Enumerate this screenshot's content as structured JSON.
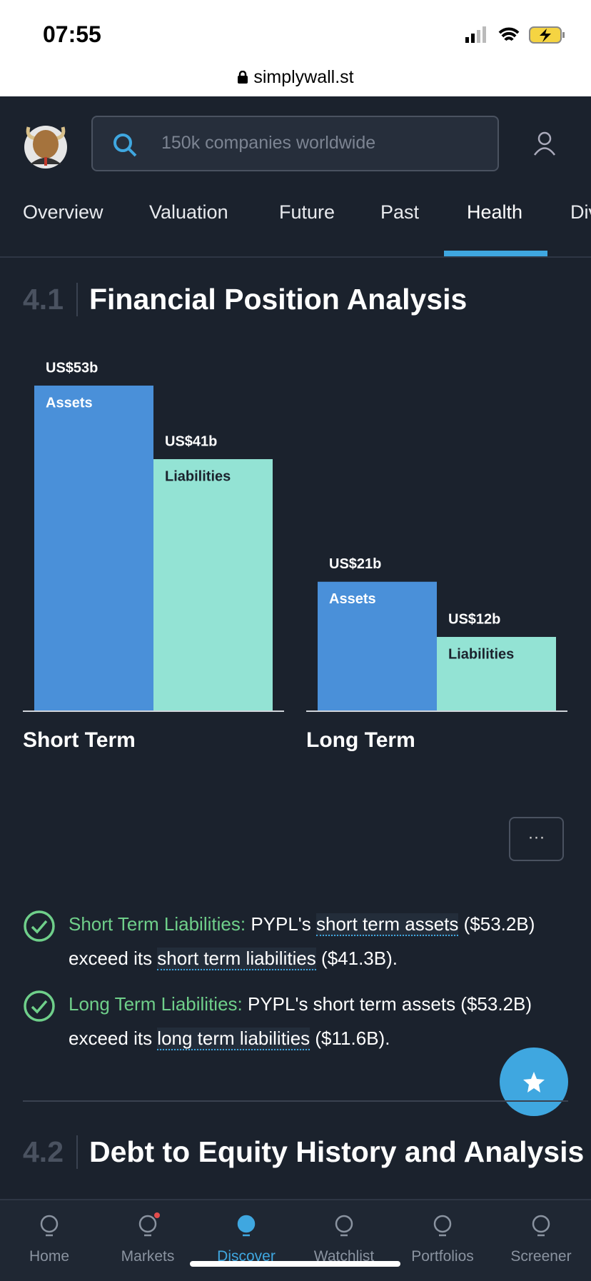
{
  "status_bar": {
    "time": "07:55",
    "url": "simplywall.st"
  },
  "header": {
    "search_placeholder": "150k companies worldwide"
  },
  "tabs": {
    "items": [
      "Overview",
      "Valuation",
      "Future",
      "Past",
      "Health",
      "Div"
    ],
    "active": 4
  },
  "section_1": {
    "number": "4.1",
    "title": "Financial Position Analysis"
  },
  "financial_position": {
    "type": "bar",
    "groups": [
      "Short Term",
      "Long Term"
    ],
    "series": [
      {
        "name": "Assets",
        "color": "#4a90d9",
        "label_color": "#ffffff",
        "values": [
          53,
          21
        ],
        "value_labels": [
          "US$53b",
          "US$21b"
        ]
      },
      {
        "name": "Liabilities",
        "color": "#93e3d4",
        "label_color": "#1b222d",
        "values": [
          41,
          12
        ],
        "value_labels": [
          "US$41b",
          "US$12b"
        ]
      }
    ]
  },
  "more_button": "···",
  "checks": [
    {
      "label": "Short Term Liabilities:",
      "segments": [
        {
          "text": "PYPL's ",
          "style": "plain"
        },
        {
          "text": "short term assets",
          "style": "link"
        },
        {
          "text": " ($53.2B) exceed its ",
          "style": "plain"
        },
        {
          "text": "short term liabilities",
          "style": "link"
        },
        {
          "text": " ($41.3B).",
          "style": "plain"
        }
      ]
    },
    {
      "label": "Long Term Liabilities:",
      "segments": [
        {
          "text": "PYPL's short term assets ($53.2B) exceed its ",
          "style": "plain"
        },
        {
          "text": "long term liabilities",
          "style": "link"
        },
        {
          "text": " ($11.6B).",
          "style": "plain"
        }
      ]
    }
  ],
  "section_2": {
    "number": "4.2",
    "title": "Debt to Equity History and Analysis"
  },
  "nav": {
    "items": [
      "Home",
      "Markets",
      "Discover",
      "Watchlist",
      "Portfolios",
      "Screener"
    ],
    "active": 2
  }
}
